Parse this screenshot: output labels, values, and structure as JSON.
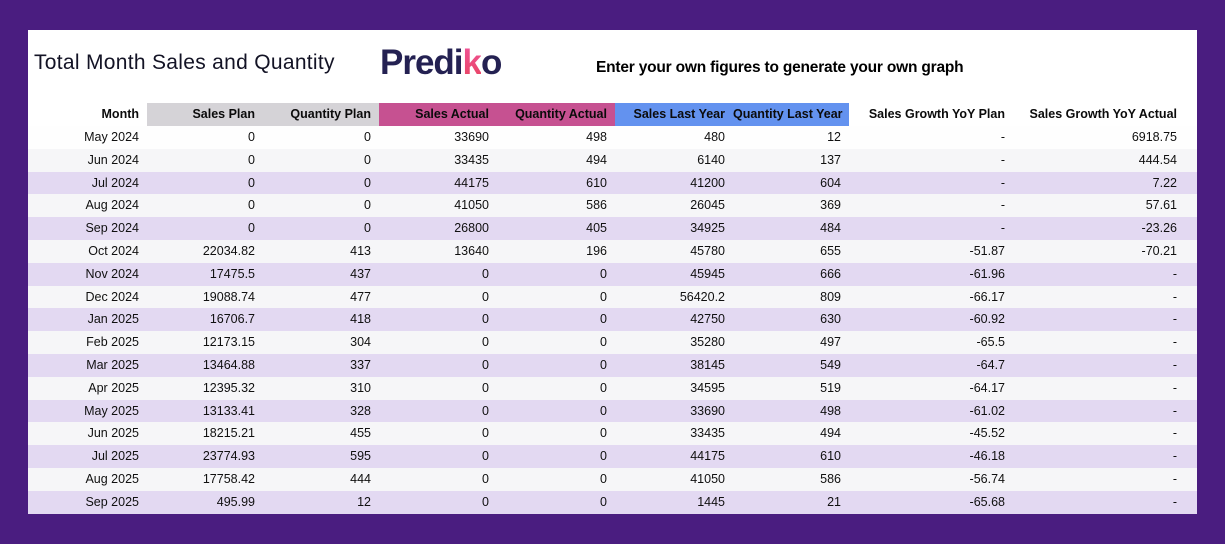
{
  "header": {
    "title": "Total Month Sales and Quantity",
    "logo": {
      "prefix": "Predi",
      "accent": "k",
      "suffix": "o"
    },
    "tagline": "Enter your own figures to generate your own graph"
  },
  "colors": {
    "frame_background": "#4a1d80",
    "plan_header": "#d5d3d7",
    "actual_header": "#c65191",
    "last_year_header": "#6392ef",
    "stripe_lavender": "#e3d9f2",
    "logo_navy": "#242152",
    "logo_pink": "#ee4a7b"
  },
  "table": {
    "columns": [
      {
        "key": "month",
        "label": "Month",
        "group": "month"
      },
      {
        "key": "sales-plan",
        "label": "Sales Plan",
        "group": "plan"
      },
      {
        "key": "quantity-plan",
        "label": "Quantity Plan",
        "group": "plan"
      },
      {
        "key": "sales-actual",
        "label": "Sales Actual",
        "group": "actual"
      },
      {
        "key": "quantity-actual",
        "label": "Quantity Actual",
        "group": "actual"
      },
      {
        "key": "sales-last-year",
        "label": "Sales Last Year",
        "group": "lastyear"
      },
      {
        "key": "quantity-last-year",
        "label": "Quantity Last Year",
        "group": "lastyear"
      },
      {
        "key": "sales-growth-yoy-plan",
        "label": "Sales Growth YoY Plan",
        "group": "growth"
      },
      {
        "key": "sales-growth-yoy-actual",
        "label": "Sales Growth YoY Actual",
        "group": "growth"
      }
    ],
    "rows": [
      [
        "May 2024",
        "0",
        "0",
        "33690",
        "498",
        "480",
        "12",
        "-",
        "6918.75"
      ],
      [
        "Jun 2024",
        "0",
        "0",
        "33435",
        "494",
        "6140",
        "137",
        "-",
        "444.54"
      ],
      [
        "Jul 2024",
        "0",
        "0",
        "44175",
        "610",
        "41200",
        "604",
        "-",
        "7.22"
      ],
      [
        "Aug 2024",
        "0",
        "0",
        "41050",
        "586",
        "26045",
        "369",
        "-",
        "57.61"
      ],
      [
        "Sep 2024",
        "0",
        "0",
        "26800",
        "405",
        "34925",
        "484",
        "-",
        "-23.26"
      ],
      [
        "Oct 2024",
        "22034.82",
        "413",
        "13640",
        "196",
        "45780",
        "655",
        "-51.87",
        "-70.21"
      ],
      [
        "Nov 2024",
        "17475.5",
        "437",
        "0",
        "0",
        "45945",
        "666",
        "-61.96",
        "-"
      ],
      [
        "Dec 2024",
        "19088.74",
        "477",
        "0",
        "0",
        "56420.2",
        "809",
        "-66.17",
        "-"
      ],
      [
        "Jan 2025",
        "16706.7",
        "418",
        "0",
        "0",
        "42750",
        "630",
        "-60.92",
        "-"
      ],
      [
        "Feb 2025",
        "12173.15",
        "304",
        "0",
        "0",
        "35280",
        "497",
        "-65.5",
        "-"
      ],
      [
        "Mar 2025",
        "13464.88",
        "337",
        "0",
        "0",
        "38145",
        "549",
        "-64.7",
        "-"
      ],
      [
        "Apr 2025",
        "12395.32",
        "310",
        "0",
        "0",
        "34595",
        "519",
        "-64.17",
        "-"
      ],
      [
        "May 2025",
        "13133.41",
        "328",
        "0",
        "0",
        "33690",
        "498",
        "-61.02",
        "-"
      ],
      [
        "Jun 2025",
        "18215.21",
        "455",
        "0",
        "0",
        "33435",
        "494",
        "-45.52",
        "-"
      ],
      [
        "Jul 2025",
        "23774.93",
        "595",
        "0",
        "0",
        "44175",
        "610",
        "-46.18",
        "-"
      ],
      [
        "Aug 2025",
        "17758.42",
        "444",
        "0",
        "0",
        "41050",
        "586",
        "-56.74",
        "-"
      ],
      [
        "Sep 2025",
        "495.99",
        "12",
        "0",
        "0",
        "1445",
        "21",
        "-65.68",
        "-"
      ]
    ]
  }
}
